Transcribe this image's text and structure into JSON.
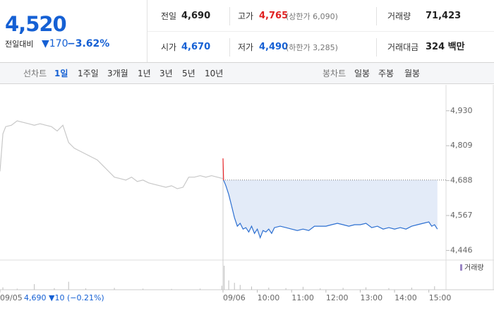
{
  "quote": {
    "price": "4,520",
    "change_label": "전일대비",
    "change": "▼170",
    "change_pct": "−3.62%"
  },
  "summary": [
    [
      {
        "label": "전일",
        "value": "4,690"
      },
      {
        "label": "고가",
        "value": "4,765",
        "note": "(상한가 6,090)"
      },
      {
        "label": "거래량",
        "value": "71,423"
      }
    ],
    [
      {
        "label": "시가",
        "value": "4,670"
      },
      {
        "label": "저가",
        "value": "4,490",
        "note": "(하한가 3,285)"
      },
      {
        "label": "거래대금",
        "value": "324 백만"
      }
    ]
  ],
  "tabs": {
    "line_label": "선차트",
    "line_periods": [
      "1일",
      "1주일",
      "3개월",
      "1년",
      "3년",
      "5년",
      "10년"
    ],
    "candle_label": "봉차트",
    "candle_periods": [
      "일봉",
      "주봉",
      "월봉"
    ]
  },
  "chart_data": {
    "type": "line",
    "xlim": [
      0,
      780
    ],
    "xticks": [
      {
        "value": 0,
        "label": "09/05"
      },
      {
        "value": 390,
        "label": "09/06"
      },
      {
        "value": 450,
        "label": "10:00"
      },
      {
        "value": 510,
        "label": "11:00"
      },
      {
        "value": 570,
        "label": "12:00"
      },
      {
        "value": 630,
        "label": "13:00"
      },
      {
        "value": 690,
        "label": "14:00"
      },
      {
        "value": 750,
        "label": "15:00"
      }
    ],
    "ylim": [
      4420,
      5020
    ],
    "yticks": [
      {
        "value": 4446,
        "label": "4,446"
      },
      {
        "value": 4567,
        "label": "4,567"
      },
      {
        "value": 4688,
        "label": "4,688"
      },
      {
        "value": 4809,
        "label": "4,809"
      },
      {
        "value": 4930,
        "label": "4,930"
      }
    ],
    "grid": false,
    "reference": 4690,
    "up_color": "#e8262a",
    "area_color": "#e3ebf8",
    "prev_info": "4,690 ▼10 (−0.21%)",
    "series": [
      {
        "color": "#c8c8c8",
        "x": [
          0,
          5,
          10,
          20,
          30,
          40,
          50,
          60,
          70,
          80,
          90,
          100,
          110,
          120,
          130,
          140,
          150,
          160,
          170,
          180,
          190,
          200,
          210,
          220,
          230,
          240,
          250,
          260,
          270,
          280,
          290,
          300,
          310,
          320,
          330,
          340,
          350,
          360,
          370,
          380,
          390
        ],
        "values": [
          4720,
          4850,
          4875,
          4880,
          4895,
          4890,
          4885,
          4880,
          4885,
          4880,
          4875,
          4860,
          4880,
          4820,
          4800,
          4790,
          4780,
          4770,
          4760,
          4740,
          4720,
          4700,
          4695,
          4690,
          4700,
          4685,
          4690,
          4680,
          4675,
          4670,
          4665,
          4670,
          4660,
          4665,
          4700,
          4700,
          4705,
          4700,
          4705,
          4700,
          4695
        ]
      },
      {
        "color": "#2c6fd1",
        "x": [
          390,
          391,
          395,
          400,
          405,
          410,
          415,
          420,
          425,
          430,
          435,
          440,
          445,
          450,
          455,
          460,
          465,
          470,
          475,
          480,
          490,
          500,
          510,
          520,
          530,
          540,
          550,
          560,
          570,
          580,
          590,
          600,
          610,
          620,
          630,
          640,
          650,
          660,
          670,
          680,
          690,
          700,
          710,
          720,
          730,
          740,
          750,
          755,
          760,
          765
        ],
        "values": [
          4765,
          4690,
          4670,
          4640,
          4600,
          4560,
          4530,
          4540,
          4520,
          4525,
          4510,
          4530,
          4505,
          4520,
          4490,
          4515,
          4510,
          4520,
          4505,
          4525,
          4530,
          4525,
          4520,
          4515,
          4520,
          4515,
          4530,
          4530,
          4530,
          4535,
          4540,
          4535,
          4530,
          4535,
          4535,
          4540,
          4525,
          4530,
          4520,
          4525,
          4520,
          4525,
          4520,
          4530,
          4535,
          4540,
          4545,
          4530,
          4535,
          4520
        ]
      }
    ],
    "volume": {
      "name": "거래량",
      "color": "#bdbdbd",
      "legend_color": "#9a85c4",
      "x": [
        5,
        30,
        60,
        95,
        120,
        150,
        200,
        250,
        300,
        350,
        388,
        392,
        400,
        410,
        420,
        440,
        470,
        500,
        530,
        560,
        600,
        640,
        680,
        720,
        760
      ],
      "values": [
        900,
        400,
        2100,
        600,
        3000,
        500,
        700,
        400,
        300,
        400,
        1500,
        9000,
        3500,
        2600,
        1800,
        1200,
        800,
        600,
        1100,
        500,
        700,
        900,
        600,
        800,
        1300
      ]
    }
  }
}
